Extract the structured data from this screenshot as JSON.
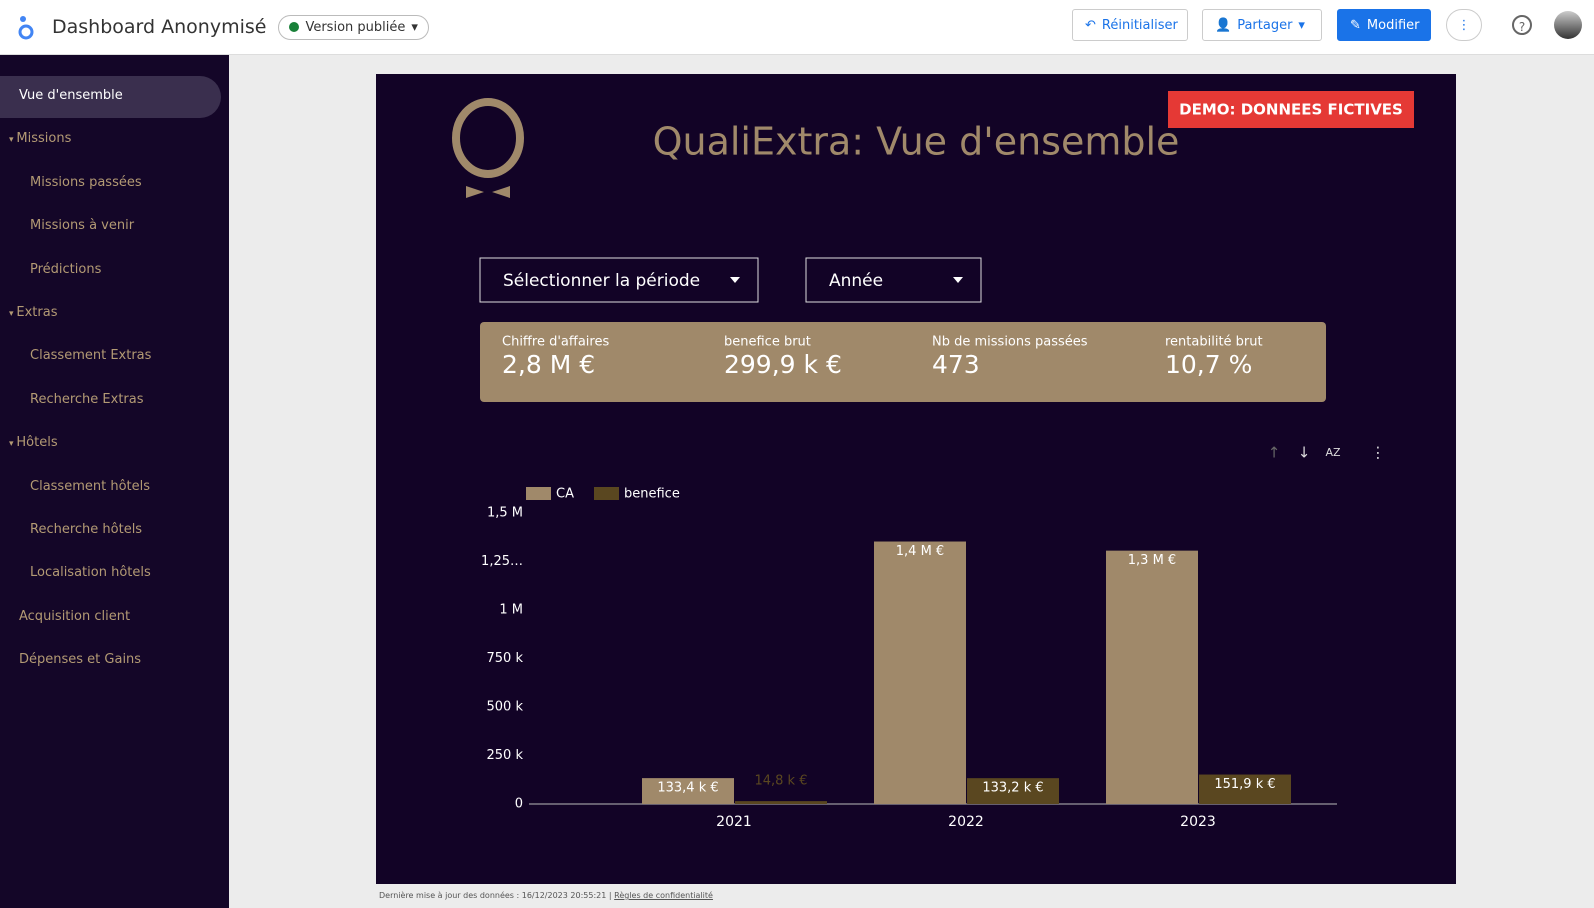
{
  "header": {
    "title": "Dashboard Anonymisé",
    "status": "Version publiée",
    "reset": "Réinitialiser",
    "share": "Partager",
    "edit": "Modifier"
  },
  "sidebar": {
    "items": [
      {
        "label": "Vue d'ensemble"
      },
      {
        "label": "Missions",
        "children": [
          "Missions passées",
          "Missions à venir",
          "Prédictions"
        ]
      },
      {
        "label": "Extras",
        "children": [
          "Classement Extras",
          "Recherche Extras"
        ]
      },
      {
        "label": "Hôtels",
        "children": [
          "Classement hôtels",
          "Recherche hôtels",
          "Localisation hôtels"
        ]
      },
      {
        "label": "Acquisition client"
      },
      {
        "label": "Dépenses et Gains"
      }
    ]
  },
  "report": {
    "title": "QualiExtra: Vue d'ensemble",
    "badge": "DEMO: DONNEES FICTIVES",
    "filters": [
      "Sélectionner la période",
      "Année"
    ],
    "kpis": [
      {
        "label": "Chiffre d'affaires",
        "value": "2,8 M €"
      },
      {
        "label": "benefice brut",
        "value": "299,9 k €"
      },
      {
        "label": "Nb de missions passées",
        "value": "473"
      },
      {
        "label": "rentabilité brut",
        "value": "10,7 %"
      }
    ]
  },
  "footer": {
    "updated": "Dernière mise à jour des données : 16/12/2023 20:55:21",
    "privacy": "Règles de confidentialité"
  },
  "chart_data": {
    "type": "bar",
    "categories": [
      "2021",
      "2022",
      "2023"
    ],
    "series": [
      {
        "name": "CA",
        "color": "#a0896a",
        "values": [
          133400,
          1353000,
          1306000
        ],
        "value_labels": [
          "133,4 k €",
          "1,4 M €",
          "1,3 M €"
        ]
      },
      {
        "name": "benefice",
        "color": "#5a4720",
        "values": [
          14800,
          133200,
          151900
        ],
        "value_labels": [
          "14,8 k €",
          "133,2 k €",
          "151,9 k €"
        ]
      }
    ],
    "ylim": [
      0,
      1500000
    ],
    "yticks": [
      0,
      {
        "value": 250000,
        "label": "250 k"
      },
      {
        "value": 500000,
        "label": "500 k"
      },
      {
        "value": 750000,
        "label": "750 k"
      },
      {
        "value": 1000000,
        "label": "1 M"
      },
      {
        "value": 1250000,
        "label": "1,25…"
      },
      {
        "value": 1500000,
        "label": "1,5 M"
      }
    ],
    "legend": "top-left"
  }
}
